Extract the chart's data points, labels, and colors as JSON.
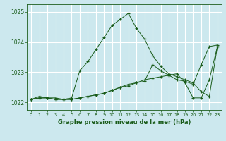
{
  "xlabel": "Graphe pression niveau de la mer (hPa)",
  "background_color": "#cce8ee",
  "grid_color": "#ffffff",
  "line_color": "#1a5c1a",
  "xlim": [
    -0.5,
    23.5
  ],
  "ylim": [
    1021.75,
    1025.25
  ],
  "yticks": [
    1022,
    1023,
    1024,
    1025
  ],
  "xticks": [
    0,
    1,
    2,
    3,
    4,
    5,
    6,
    7,
    8,
    9,
    10,
    11,
    12,
    13,
    14,
    15,
    16,
    17,
    18,
    19,
    20,
    21,
    22,
    23
  ],
  "series": [
    [
      1022.1,
      1022.2,
      1022.15,
      1022.15,
      1022.1,
      1022.15,
      1023.05,
      1023.35,
      1023.75,
      1024.15,
      1024.55,
      1024.75,
      1024.95,
      1024.45,
      1024.1,
      1023.55,
      1023.2,
      1022.95,
      1022.85,
      1022.75,
      1022.65,
      1022.35,
      1022.2,
      1023.85
    ],
    [
      1022.1,
      1022.15,
      1022.15,
      1022.1,
      1022.1,
      1022.1,
      1022.15,
      1022.2,
      1022.25,
      1022.3,
      1022.4,
      1022.5,
      1022.6,
      1022.65,
      1022.75,
      1022.8,
      1022.85,
      1022.9,
      1022.95,
      1022.65,
      1022.15,
      1022.15,
      1022.75,
      1023.85
    ],
    [
      1022.1,
      1022.15,
      1022.15,
      1022.1,
      1022.1,
      1022.1,
      1022.15,
      1022.2,
      1022.25,
      1022.3,
      1022.4,
      1022.5,
      1022.55,
      1022.65,
      1022.7,
      1023.25,
      1023.05,
      1022.9,
      1022.75,
      1022.7,
      1022.6,
      1023.25,
      1023.85,
      1023.9
    ]
  ]
}
